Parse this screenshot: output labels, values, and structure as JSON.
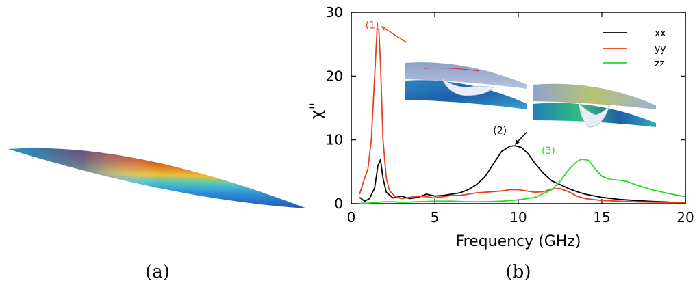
{
  "panel_labels": [
    "(a)",
    "(b)"
  ],
  "chart_data": {
    "type": "line",
    "xlabel": "Frequency (GHz)",
    "ylabel": "χ\"",
    "xlim": [
      0,
      20
    ],
    "ylim": [
      0,
      30
    ],
    "xticks": [
      0,
      5,
      10,
      15,
      20
    ],
    "yticks": [
      0,
      10,
      20,
      30
    ],
    "grid": false,
    "legend_position": "top-right",
    "series": [
      {
        "name": "xx",
        "color": "#000000",
        "x": [
          0.5,
          0.8,
          1.1,
          1.4,
          1.6,
          1.75,
          1.9,
          2.1,
          2.5,
          3.0,
          3.5,
          4.0,
          4.5,
          5.0,
          5.5,
          6.0,
          6.5,
          7.0,
          7.5,
          8.0,
          8.5,
          9.0,
          9.5,
          9.8,
          10.2,
          10.6,
          11.0,
          11.5,
          12.0,
          12.5,
          13.0,
          13.5,
          14.0,
          15.0,
          16.0,
          17.0,
          18.0,
          19.0,
          20.0
        ],
        "y": [
          1.0,
          0.4,
          0.8,
          2.5,
          6.0,
          6.9,
          4.0,
          1.8,
          0.9,
          1.2,
          0.8,
          1.0,
          1.5,
          1.2,
          1.3,
          1.5,
          1.7,
          2.2,
          3.0,
          4.2,
          6.2,
          8.2,
          9.0,
          9.1,
          8.8,
          7.8,
          6.3,
          4.8,
          3.6,
          3.0,
          2.4,
          1.9,
          1.5,
          1.0,
          0.7,
          0.5,
          0.35,
          0.25,
          0.2
        ]
      },
      {
        "name": "yy",
        "color": "#e8401c",
        "x": [
          0.5,
          0.8,
          1.0,
          1.2,
          1.4,
          1.55,
          1.65,
          1.75,
          1.9,
          2.1,
          2.3,
          2.6,
          3.0,
          3.5,
          4.0,
          4.5,
          5.0,
          5.5,
          6.0,
          6.5,
          7.0,
          7.5,
          8.0,
          8.5,
          9.0,
          9.5,
          10.0,
          10.5,
          11.0,
          11.5,
          12.0,
          12.5,
          13.0,
          13.5,
          14.0,
          15.0,
          16.0,
          17.0,
          18.0,
          19.0,
          20.0
        ],
        "y": [
          1.5,
          4.0,
          5.5,
          10.0,
          20.0,
          27.5,
          27.3,
          22.0,
          10.0,
          4.0,
          2.0,
          1.2,
          0.8,
          1.0,
          1.2,
          1.1,
          0.9,
          1.1,
          1.3,
          1.3,
          1.5,
          1.7,
          1.8,
          1.9,
          2.0,
          2.2,
          2.2,
          2.0,
          1.8,
          1.9,
          2.3,
          2.4,
          1.9,
          1.2,
          0.8,
          0.5,
          0.4,
          0.3,
          0.25,
          0.2,
          0.15
        ]
      },
      {
        "name": "zz",
        "color": "#22dd22",
        "x": [
          0.5,
          1.0,
          1.5,
          2.0,
          2.5,
          3.0,
          4.0,
          5.0,
          6.0,
          7.0,
          8.0,
          9.0,
          10.0,
          11.0,
          12.0,
          12.5,
          13.0,
          13.5,
          13.8,
          14.2,
          14.6,
          15.0,
          15.5,
          16.0,
          16.5,
          17.0,
          18.0,
          19.0,
          20.0
        ],
        "y": [
          0.05,
          0.1,
          0.2,
          0.3,
          0.3,
          0.2,
          0.3,
          0.4,
          0.4,
          0.3,
          0.3,
          0.4,
          0.6,
          1.0,
          2.2,
          3.5,
          5.3,
          6.6,
          7.0,
          6.8,
          5.5,
          4.3,
          3.8,
          3.7,
          3.5,
          3.0,
          2.2,
          1.6,
          1.1
        ]
      }
    ],
    "annotations": [
      {
        "text": "(1)",
        "x": 1.25,
        "y": 27.5,
        "color": "#e8401c",
        "arrow_to": [
          1.8,
          27.8
        ]
      },
      {
        "text": "(2)",
        "x": 8.9,
        "y": 11.0,
        "color": "#000000",
        "arrow_to": [
          9.8,
          9.3
        ]
      },
      {
        "text": "(3)",
        "x": 11.8,
        "y": 7.8,
        "color": "#22dd22"
      }
    ]
  }
}
